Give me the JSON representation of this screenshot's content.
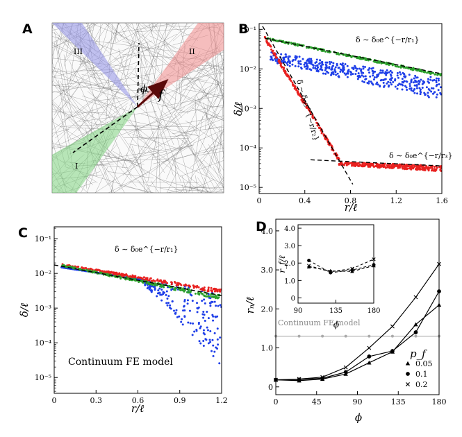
{
  "panel_labels": [
    "A",
    "B",
    "C",
    "D"
  ],
  "panel_a": {
    "sector_labels": [
      "I",
      "II",
      "III"
    ],
    "angle_label": "ϕ",
    "force_label": "f",
    "sector_colors": {
      "I": "#7fd37f",
      "II": "#f08a8a",
      "III": "#8f8fe6"
    }
  },
  "series_colors": {
    "sector_I": "#2ca02c",
    "sector_II": "#e8201f",
    "sector_III": "#1f3fe8",
    "fe_line": "#aaaaaa"
  },
  "panel_d_legend": {
    "title": "p_f",
    "entries": [
      {
        "marker": "triangle",
        "label": "0.05"
      },
      {
        "marker": "circle",
        "label": "0.1"
      },
      {
        "marker": "cross",
        "label": "0.2"
      }
    ]
  },
  "chart_data": [
    {
      "panel": "B",
      "type": "scatter",
      "xlabel": "r/ℓ",
      "ylabel": "δ/ℓ",
      "yscale": "log",
      "xlim": [
        0,
        1.6
      ],
      "ylim": [
        7e-06,
        0.14
      ],
      "xticks": [
        0,
        0.4,
        0.8,
        1.2,
        1.6
      ],
      "xtick_labels": [
        "0",
        "0.4",
        "0.8",
        "1.2",
        "1.6"
      ],
      "yticks": [
        1e-05,
        0.0001,
        0.001,
        0.01,
        0.1
      ],
      "ytick_labels": [
        "10⁻⁵",
        "10⁻⁴",
        "10⁻³",
        "10⁻²",
        "10⁻¹"
      ],
      "series": [
        {
          "name": "sector I",
          "color": "#2ca02c",
          "x_range": [
            0.05,
            1.6
          ],
          "y_start": 0.06,
          "y_end": 0.007
        },
        {
          "name": "sector II (near)",
          "color": "#e8201f",
          "x_range": [
            0.05,
            0.7
          ],
          "y_start": 0.06,
          "y_end": 5e-05
        },
        {
          "name": "sector II (far)",
          "color": "#e8201f",
          "x_range": [
            0.7,
            1.6
          ],
          "y_start": 4e-05,
          "y_end": 3e-05
        },
        {
          "name": "sector III",
          "color": "#1f3fe8",
          "x_range": [
            0.1,
            1.6
          ],
          "y_start": 0.02,
          "y_end": 0.003
        }
      ],
      "fit_lines": [
        {
          "x": [
            0.05,
            1.6
          ],
          "y": [
            0.06,
            0.0075
          ]
        },
        {
          "x": [
            0.03,
            0.82
          ],
          "y": [
            0.12,
            1.2e-05
          ]
        },
        {
          "x": [
            0.45,
            1.6
          ],
          "y": [
            5e-05,
            3.5e-05
          ]
        }
      ],
      "annotations": [
        "δ ∼ δ₀e^{−r/r₁}",
        "δ ∼ δ₀e^{−r/r₂}",
        "δ ∼ δ₀e^{−r/r₃}"
      ]
    },
    {
      "panel": "C",
      "type": "scatter",
      "xlabel": "r/ℓ",
      "ylabel": "δ/ℓ",
      "yscale": "log",
      "xlim": [
        0,
        1.2
      ],
      "ylim": [
        3.5e-06,
        0.22
      ],
      "xticks": [
        0,
        0.3,
        0.6,
        0.9,
        1.2
      ],
      "xtick_labels": [
        "0",
        "0.3",
        "0.6",
        "0.9",
        "1.2"
      ],
      "yticks": [
        1e-05,
        0.0001,
        0.001,
        0.01,
        0.1
      ],
      "ytick_labels": [
        "10⁻⁵",
        "10⁻⁴",
        "10⁻³",
        "10⁻²",
        "10⁻¹"
      ],
      "series": [
        {
          "name": "sector I",
          "color": "#2ca02c",
          "x_range": [
            0.05,
            1.2
          ],
          "y_start": 0.017,
          "y_end": 0.002
        },
        {
          "name": "sector II",
          "color": "#e8201f",
          "x_range": [
            0.05,
            1.2
          ],
          "y_start": 0.018,
          "y_end": 0.003
        },
        {
          "name": "sector III",
          "color": "#1f3fe8",
          "x_range": [
            0.05,
            1.2
          ],
          "y_start": 0.015,
          "y_end": 0.0003
        }
      ],
      "fit_lines": [
        {
          "x": [
            0,
            1.2
          ],
          "y": [
            0.0175,
            0.0023
          ]
        }
      ],
      "annotations": [
        "δ ∼ δ₀e^{−r/r₁}"
      ],
      "text": "Continuum FE model"
    },
    {
      "panel": "D",
      "type": "line",
      "xlabel": "ϕ",
      "ylabel": "rₙ/ℓ",
      "xlim": [
        0,
        180
      ],
      "ylim": [
        -0.2,
        4.3
      ],
      "xticks": [
        0,
        45,
        90,
        135,
        180
      ],
      "xtick_labels": [
        "0",
        "45",
        "90",
        "135",
        "180"
      ],
      "yticks": [
        0,
        1.0,
        2.0,
        3.0,
        4.0
      ],
      "ytick_labels": [
        "0",
        "1.0",
        "2.0",
        "3.0",
        "4.0"
      ],
      "reference_line": {
        "y": 1.3,
        "label": "Continuum FE model",
        "x_markers": [
          0,
          25.7,
          51.4,
          77.1,
          102.9,
          128.6,
          154.3,
          180
        ]
      },
      "series": [
        {
          "name": "0.05",
          "marker": "triangle",
          "x": [
            0,
            25.7,
            51.4,
            77.1,
            102.9,
            128.6,
            154.3,
            180
          ],
          "y": [
            0.18,
            0.16,
            0.2,
            0.33,
            0.62,
            0.9,
            1.6,
            2.1
          ]
        },
        {
          "name": "0.1",
          "marker": "circle",
          "x": [
            0,
            25.7,
            51.4,
            77.1,
            102.9,
            128.6,
            154.3,
            180
          ],
          "y": [
            0.18,
            0.19,
            0.22,
            0.38,
            0.78,
            0.92,
            1.4,
            2.45
          ]
        },
        {
          "name": "0.2",
          "marker": "cross",
          "x": [
            0,
            25.7,
            51.4,
            77.1,
            102.9,
            128.6,
            154.3,
            180
          ],
          "y": [
            0.18,
            0.2,
            0.25,
            0.5,
            1.0,
            1.55,
            2.3,
            3.15
          ]
        }
      ]
    },
    {
      "panel": "D-inset",
      "type": "line",
      "xlabel": "ϕ",
      "ylabel": "r_f/ℓ",
      "xlim": [
        90,
        180
      ],
      "ylim": [
        -0.3,
        4.2
      ],
      "xticks": [
        90,
        135,
        180
      ],
      "xtick_labels": [
        "90",
        "135",
        "180"
      ],
      "yticks": [
        0,
        1.0,
        2.0,
        3.0,
        4.0
      ],
      "ytick_labels": [
        "0",
        "1.0",
        "2.0",
        "3.0",
        "4.0"
      ],
      "series": [
        {
          "name": "0.05",
          "marker": "triangle",
          "x": [
            102.9,
            128.6,
            154.3,
            180
          ],
          "y": [
            1.78,
            1.55,
            1.52,
            1.85
          ]
        },
        {
          "name": "0.1",
          "marker": "circle",
          "x": [
            102.9,
            128.6,
            154.3,
            180
          ],
          "y": [
            2.15,
            1.45,
            1.6,
            1.9
          ]
        },
        {
          "name": "0.2",
          "marker": "cross",
          "x": [
            102.9,
            128.6,
            154.3,
            180
          ],
          "y": [
            1.85,
            1.5,
            1.68,
            2.22
          ]
        }
      ]
    }
  ]
}
